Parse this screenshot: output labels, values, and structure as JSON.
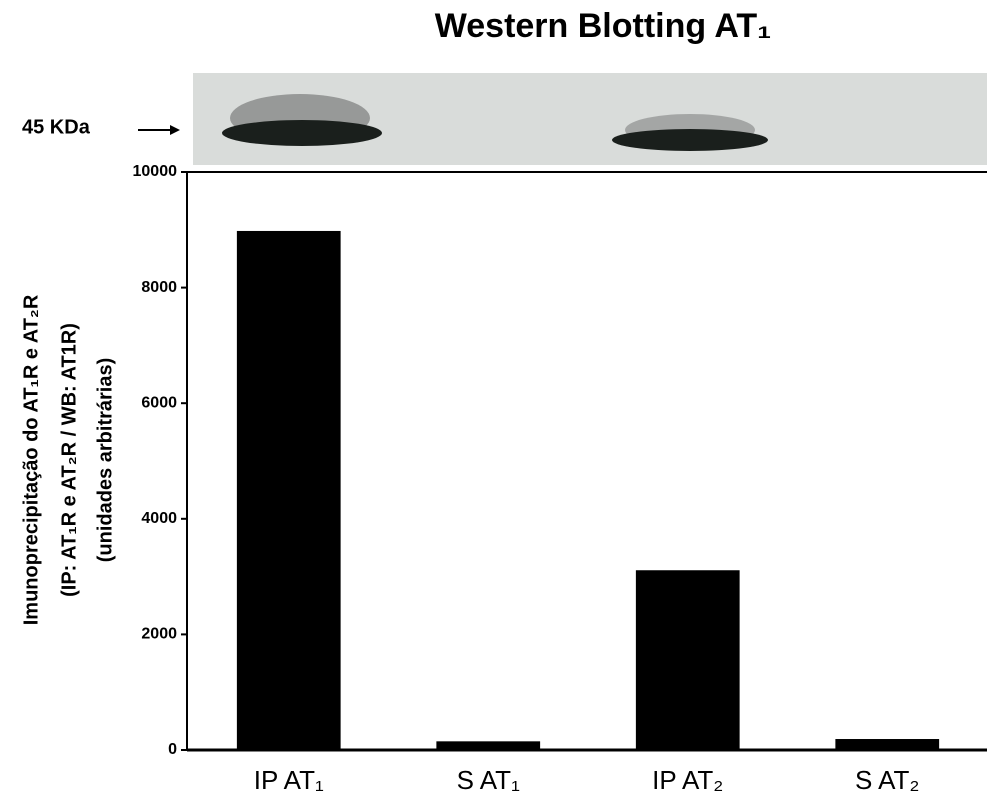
{
  "chart_data": {
    "type": "bar",
    "title": "Western Blotting AT₁",
    "blot_marker": "45 KDa",
    "y_label": [
      "Imunoprecipitação do AT₁R e AT₂R",
      "(IP: AT₁R e AT₂R / WB: AT1R)",
      "(unidades arbitrárias)"
    ],
    "categories": [
      "IP AT₁",
      "S AT₁",
      "IP AT₂",
      "S AT₂"
    ],
    "values": [
      8980,
      150,
      3110,
      190
    ],
    "color": "#000000",
    "ylim": [
      0,
      10000
    ],
    "yticks": [
      0,
      2000,
      4000,
      6000,
      8000,
      10000
    ],
    "grid": false
  }
}
